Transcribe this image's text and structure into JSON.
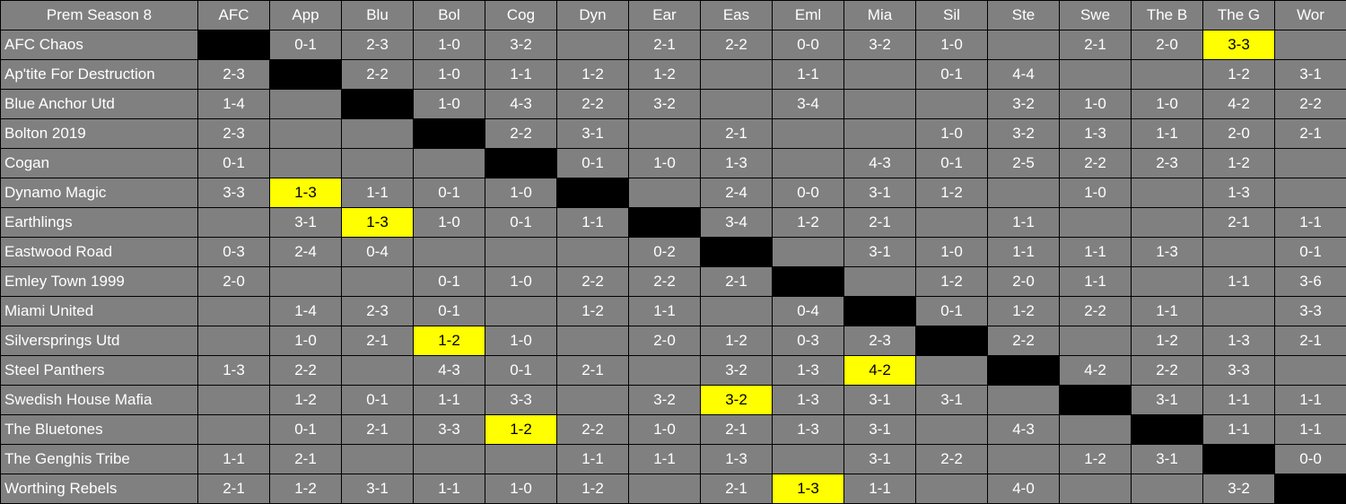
{
  "title": "Prem Season 8",
  "columns": [
    "AFC",
    "App",
    "Blu",
    "Bol",
    "Cog",
    "Dyn",
    "Ear",
    "Eas",
    "Eml",
    "Mia",
    "Sil",
    "Ste",
    "Swe",
    "The B",
    "The G",
    "Wor"
  ],
  "colors": {
    "cell_bg": "#808080",
    "diagonal": "#000000",
    "highlight": "#ffff00",
    "grid": "#000000"
  },
  "rows": [
    {
      "team": "AFC Chaos",
      "results": [
        null,
        "0-1",
        "2-3",
        "1-0",
        "3-2",
        "",
        "2-1",
        "2-2",
        "0-0",
        "3-2",
        "1-0",
        "",
        "2-1",
        "2-0",
        "3-3",
        ""
      ],
      "highlighted": [
        "The G"
      ]
    },
    {
      "team": "Ap'tite For Destruction",
      "results": [
        "2-3",
        null,
        "2-2",
        "1-0",
        "1-1",
        "1-2",
        "1-2",
        "",
        "1-1",
        "",
        "0-1",
        "4-4",
        "",
        "",
        "1-2",
        "3-1"
      ],
      "highlighted": []
    },
    {
      "team": "Blue Anchor Utd",
      "results": [
        "1-4",
        "",
        null,
        "1-0",
        "4-3",
        "2-2",
        "3-2",
        "",
        "3-4",
        "",
        "",
        "3-2",
        "1-0",
        "1-0",
        "4-2",
        "2-2"
      ],
      "highlighted": []
    },
    {
      "team": "Bolton 2019",
      "results": [
        "2-3",
        "",
        "",
        null,
        "2-2",
        "3-1",
        "",
        "2-1",
        "",
        "",
        "1-0",
        "3-2",
        "1-3",
        "1-1",
        "2-0",
        "2-1"
      ],
      "highlighted": []
    },
    {
      "team": "Cogan",
      "results": [
        "0-1",
        "",
        "",
        "",
        null,
        "0-1",
        "1-0",
        "1-3",
        "",
        "4-3",
        "0-1",
        "2-5",
        "2-2",
        "2-3",
        "1-2",
        ""
      ],
      "highlighted": []
    },
    {
      "team": "Dynamo Magic",
      "results": [
        "3-3",
        "1-3",
        "1-1",
        "0-1",
        "1-0",
        null,
        "",
        "2-4",
        "0-0",
        "3-1",
        "1-2",
        "",
        "1-0",
        "",
        "1-3",
        ""
      ],
      "highlighted": [
        "App"
      ]
    },
    {
      "team": "Earthlings",
      "results": [
        "",
        "3-1",
        "1-3",
        "1-0",
        "0-1",
        "1-1",
        null,
        "3-4",
        "1-2",
        "2-1",
        "",
        "1-1",
        "",
        "",
        "2-1",
        "1-1"
      ],
      "highlighted": [
        "Blu"
      ]
    },
    {
      "team": "Eastwood Road",
      "results": [
        "0-3",
        "2-4",
        "0-4",
        "",
        "",
        "",
        "0-2",
        null,
        "",
        "3-1",
        "1-0",
        "1-1",
        "1-1",
        "1-3",
        "",
        "0-1"
      ],
      "highlighted": []
    },
    {
      "team": "Emley Town 1999",
      "results": [
        "2-0",
        "",
        "",
        "0-1",
        "1-0",
        "2-2",
        "2-2",
        "2-1",
        null,
        "",
        "1-2",
        "2-0",
        "1-1",
        "",
        "1-1",
        "3-6"
      ],
      "highlighted": []
    },
    {
      "team": "Miami United",
      "results": [
        "",
        "1-4",
        "2-3",
        "0-1",
        "",
        "1-2",
        "1-1",
        "",
        "0-4",
        null,
        "0-1",
        "1-2",
        "2-2",
        "1-1",
        "",
        "3-3"
      ],
      "highlighted": []
    },
    {
      "team": "Silversprings Utd",
      "results": [
        "",
        "1-0",
        "2-1",
        "1-2",
        "1-0",
        "",
        "2-0",
        "1-2",
        "0-3",
        "2-3",
        null,
        "2-2",
        "",
        "1-2",
        "1-3",
        "2-1"
      ],
      "highlighted": [
        "Bol"
      ]
    },
    {
      "team": "Steel Panthers",
      "results": [
        "1-3",
        "2-2",
        "",
        "4-3",
        "0-1",
        "2-1",
        "",
        "3-2",
        "1-3",
        "4-2",
        "",
        null,
        "4-2",
        "2-2",
        "3-3",
        ""
      ],
      "highlighted": [
        "Mia"
      ]
    },
    {
      "team": "Swedish House Mafia",
      "results": [
        "",
        "1-2",
        "0-1",
        "1-1",
        "3-3",
        "",
        "3-2",
        "3-2",
        "1-3",
        "3-1",
        "3-1",
        "",
        null,
        "3-1",
        "1-1",
        "1-1"
      ],
      "highlighted": [
        "Eas"
      ]
    },
    {
      "team": "The Bluetones",
      "results": [
        "",
        "0-1",
        "2-1",
        "3-3",
        "1-2",
        "2-2",
        "1-0",
        "2-1",
        "1-3",
        "3-1",
        "",
        "4-3",
        "",
        null,
        "1-1",
        "1-1"
      ],
      "highlighted": [
        "Cog"
      ]
    },
    {
      "team": "The Genghis Tribe",
      "results": [
        "1-1",
        "2-1",
        "",
        "",
        "",
        "1-1",
        "1-1",
        "1-3",
        "",
        "3-1",
        "2-2",
        "",
        "1-2",
        "3-1",
        null,
        "0-0"
      ],
      "highlighted": []
    },
    {
      "team": "Worthing Rebels",
      "results": [
        "2-1",
        "1-2",
        "3-1",
        "1-1",
        "1-0",
        "1-2",
        "",
        "2-1",
        "1-3",
        "1-1",
        "",
        "4-0",
        "",
        "",
        "3-2",
        null
      ],
      "highlighted": [
        "Eml"
      ]
    }
  ]
}
